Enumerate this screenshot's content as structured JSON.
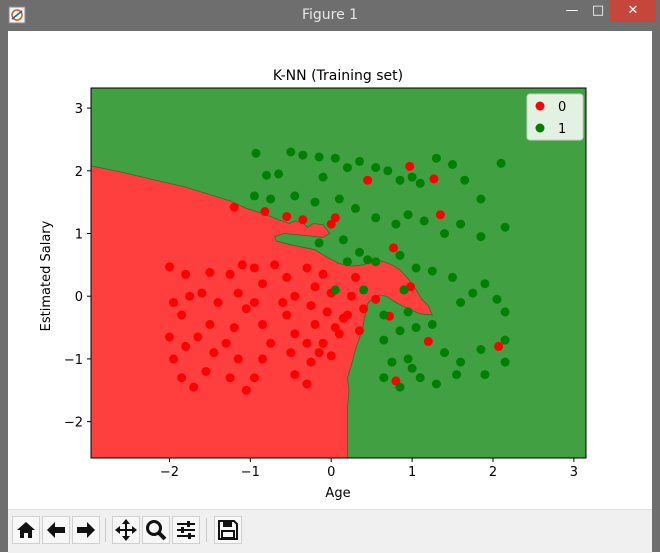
{
  "window": {
    "title": "Figure 1",
    "minimize_glyph": "—",
    "maximize_glyph": "□",
    "close_glyph": "✕"
  },
  "toolbar": {
    "buttons": [
      "home-icon",
      "back-arrow-icon",
      "forward-arrow-icon",
      "pan-icon",
      "zoom-icon",
      "configure-subplots-icon",
      "save-icon"
    ]
  },
  "colors": {
    "class0_region": "#ff3e3e",
    "class1_region": "#41a041",
    "class0_point": "#ff0000",
    "class1_point": "#008000"
  },
  "chart_data": {
    "type": "scatter",
    "title": "K-NN (Training set)",
    "xlabel": "Age",
    "ylabel": "Estimated Salary",
    "xlim": [
      -2.97,
      3.15
    ],
    "ylim": [
      -2.58,
      3.32
    ],
    "xticks": [
      "−2",
      "−1",
      "0",
      "1",
      "2",
      "3"
    ],
    "xtick_values": [
      -2,
      -1,
      0,
      1,
      2,
      3
    ],
    "yticks": [
      "−2",
      "−1",
      "0",
      "1",
      "2",
      "3"
    ],
    "ytick_values": [
      -2,
      -1,
      0,
      1,
      2,
      3
    ],
    "grid": false,
    "legend": {
      "placement": "top-right",
      "entries": [
        "0",
        "1"
      ]
    },
    "decision_boundary": [
      [
        -2.97,
        2.08
      ],
      [
        -2.6,
        1.98
      ],
      [
        -2.2,
        1.86
      ],
      [
        -1.8,
        1.74
      ],
      [
        -1.5,
        1.62
      ],
      [
        -1.25,
        1.52
      ],
      [
        -1.05,
        1.4
      ],
      [
        -0.85,
        1.32
      ],
      [
        -0.65,
        1.22
      ],
      [
        -0.52,
        1.16
      ],
      [
        -0.45,
        1.2
      ],
      [
        -0.35,
        1.18
      ],
      [
        -0.3,
        1.1
      ],
      [
        -0.22,
        1.16
      ],
      [
        -0.1,
        1.14
      ],
      [
        -0.02,
        1.0
      ],
      [
        -0.1,
        0.94
      ],
      [
        -0.58,
        1.0
      ],
      [
        -0.7,
        0.95
      ],
      [
        -0.68,
        0.88
      ],
      [
        -0.5,
        0.82
      ],
      [
        -0.35,
        0.78
      ],
      [
        -0.2,
        0.74
      ],
      [
        -0.05,
        0.62
      ],
      [
        0.1,
        0.52
      ],
      [
        0.25,
        0.48
      ],
      [
        0.4,
        0.5
      ],
      [
        0.55,
        0.58
      ],
      [
        0.65,
        0.55
      ],
      [
        0.75,
        0.5
      ],
      [
        0.85,
        0.42
      ],
      [
        0.95,
        0.28
      ],
      [
        1.05,
        0.1
      ],
      [
        1.12,
        -0.05
      ],
      [
        1.2,
        -0.15
      ],
      [
        1.25,
        -0.3
      ],
      [
        1.1,
        -0.28
      ],
      [
        0.95,
        -0.2
      ],
      [
        0.8,
        -0.1
      ],
      [
        0.68,
        0.0
      ],
      [
        0.6,
        0.02
      ],
      [
        0.5,
        -0.05
      ],
      [
        0.45,
        -0.12
      ],
      [
        0.42,
        -0.3
      ],
      [
        0.38,
        -0.55
      ],
      [
        0.3,
        -0.85
      ],
      [
        0.25,
        -1.1
      ],
      [
        0.2,
        -1.3
      ],
      [
        0.22,
        -1.5
      ],
      [
        0.2,
        -1.8
      ],
      [
        0.2,
        -2.2
      ],
      [
        0.2,
        -2.58
      ]
    ],
    "series": [
      {
        "name": "0",
        "points": [
          [
            -2.0,
            0.47
          ],
          [
            -1.8,
            0.35
          ],
          [
            -1.75,
            0.0
          ],
          [
            -1.95,
            -0.1
          ],
          [
            -1.85,
            -0.3
          ],
          [
            -2.0,
            -0.65
          ],
          [
            -1.8,
            -0.8
          ],
          [
            -1.95,
            -1.0
          ],
          [
            -1.85,
            -1.3
          ],
          [
            -1.7,
            -1.45
          ],
          [
            -1.55,
            -1.2
          ],
          [
            -1.45,
            -0.9
          ],
          [
            -1.5,
            -0.45
          ],
          [
            -1.6,
            0.05
          ],
          [
            -1.5,
            0.38
          ],
          [
            -1.25,
            0.35
          ],
          [
            -1.15,
            0.05
          ],
          [
            -1.05,
            -0.2
          ],
          [
            -1.2,
            -0.5
          ],
          [
            -1.3,
            -0.75
          ],
          [
            -1.15,
            -1.0
          ],
          [
            -1.25,
            -1.3
          ],
          [
            -1.05,
            -1.5
          ],
          [
            -0.95,
            -1.3
          ],
          [
            -0.85,
            -1.0
          ],
          [
            -0.75,
            -0.75
          ],
          [
            -0.85,
            -0.45
          ],
          [
            -0.95,
            -0.1
          ],
          [
            -0.85,
            0.2
          ],
          [
            -0.7,
            0.5
          ],
          [
            -0.55,
            0.3
          ],
          [
            -0.45,
            0.0
          ],
          [
            -0.55,
            -0.3
          ],
          [
            -0.45,
            -0.6
          ],
          [
            -0.5,
            -0.9
          ],
          [
            -0.45,
            -1.25
          ],
          [
            -0.3,
            -1.4
          ],
          [
            -0.25,
            -1.05
          ],
          [
            -0.3,
            -0.75
          ],
          [
            -0.2,
            -0.45
          ],
          [
            -0.25,
            -0.15
          ],
          [
            -0.2,
            0.15
          ],
          [
            -0.3,
            0.45
          ],
          [
            -0.1,
            0.35
          ],
          [
            0.0,
            0.05
          ],
          [
            -0.05,
            -0.25
          ],
          [
            0.05,
            -0.5
          ],
          [
            -0.1,
            -0.75
          ],
          [
            0.0,
            -0.95
          ],
          [
            0.1,
            -0.6
          ],
          [
            0.2,
            -0.3
          ],
          [
            0.25,
            0.0
          ],
          [
            0.3,
            0.3
          ],
          [
            0.4,
            -0.2
          ],
          [
            0.35,
            -0.55
          ],
          [
            -0.6,
            -0.1
          ],
          [
            -0.95,
            0.45
          ],
          [
            -1.1,
            0.5
          ],
          [
            -1.4,
            -0.1
          ],
          [
            -1.65,
            -0.65
          ],
          [
            -1.2,
            1.42
          ],
          [
            -0.82,
            1.35
          ],
          [
            -0.55,
            1.27
          ],
          [
            -0.35,
            1.22
          ],
          [
            0.0,
            1.15
          ],
          [
            0.05,
            1.25
          ],
          [
            0.45,
            1.85
          ],
          [
            0.97,
            2.07
          ],
          [
            1.27,
            1.87
          ],
          [
            1.35,
            1.3
          ],
          [
            0.77,
            0.77
          ],
          [
            0.98,
            0.15
          ],
          [
            0.72,
            -0.32
          ],
          [
            1.2,
            -0.72
          ],
          [
            0.8,
            -1.35
          ],
          [
            2.07,
            -0.8
          ],
          [
            -0.15,
            -0.9
          ],
          [
            0.15,
            -0.35
          ],
          [
            0.55,
            -0.05
          ]
        ]
      },
      {
        "name": "1",
        "points": [
          [
            -0.93,
            2.28
          ],
          [
            -0.8,
            1.93
          ],
          [
            -0.65,
            1.95
          ],
          [
            -0.5,
            2.3
          ],
          [
            -0.35,
            2.25
          ],
          [
            -0.15,
            2.22
          ],
          [
            -0.1,
            1.9
          ],
          [
            0.05,
            2.2
          ],
          [
            0.2,
            2.05
          ],
          [
            0.35,
            2.15
          ],
          [
            0.55,
            2.05
          ],
          [
            0.7,
            2.0
          ],
          [
            0.85,
            1.85
          ],
          [
            1.0,
            1.9
          ],
          [
            1.1,
            1.8
          ],
          [
            1.3,
            2.2
          ],
          [
            1.5,
            2.1
          ],
          [
            1.65,
            1.85
          ],
          [
            1.85,
            1.55
          ],
          [
            2.1,
            2.12
          ],
          [
            -0.95,
            1.6
          ],
          [
            -0.75,
            1.55
          ],
          [
            -0.45,
            1.6
          ],
          [
            -0.2,
            1.5
          ],
          [
            0.1,
            1.55
          ],
          [
            0.3,
            1.4
          ],
          [
            0.55,
            1.25
          ],
          [
            0.8,
            1.15
          ],
          [
            0.95,
            1.3
          ],
          [
            1.15,
            1.2
          ],
          [
            1.4,
            1.0
          ],
          [
            1.6,
            1.15
          ],
          [
            1.85,
            0.95
          ],
          [
            2.15,
            1.1
          ],
          [
            -0.15,
            0.85
          ],
          [
            0.15,
            0.9
          ],
          [
            0.35,
            0.7
          ],
          [
            0.55,
            0.55
          ],
          [
            0.85,
            0.65
          ],
          [
            1.05,
            0.45
          ],
          [
            1.25,
            0.4
          ],
          [
            1.5,
            0.3
          ],
          [
            1.75,
            0.05
          ],
          [
            1.6,
            -0.1
          ],
          [
            1.9,
            0.2
          ],
          [
            2.05,
            -0.05
          ],
          [
            2.15,
            -0.25
          ],
          [
            0.65,
            -0.7
          ],
          [
            0.85,
            -0.55
          ],
          [
            1.05,
            -0.5
          ],
          [
            1.25,
            -0.45
          ],
          [
            1.4,
            -0.9
          ],
          [
            1.6,
            -1.05
          ],
          [
            1.9,
            -1.25
          ],
          [
            2.15,
            -1.05
          ],
          [
            0.75,
            -1.05
          ],
          [
            0.95,
            -1.0
          ],
          [
            1.1,
            -1.3
          ],
          [
            1.3,
            -1.4
          ],
          [
            1.55,
            -1.25
          ],
          [
            0.65,
            -1.3
          ],
          [
            0.85,
            -1.45
          ],
          [
            1.0,
            -1.15
          ],
          [
            2.15,
            -0.7
          ],
          [
            1.85,
            -0.85
          ],
          [
            0.95,
            -0.25
          ],
          [
            0.65,
            -0.3
          ],
          [
            0.4,
            0.1
          ],
          [
            0.05,
            0.1
          ],
          [
            0.2,
            0.55
          ],
          [
            0.45,
            0.58
          ],
          [
            0.9,
            0.1
          ]
        ]
      }
    ]
  }
}
